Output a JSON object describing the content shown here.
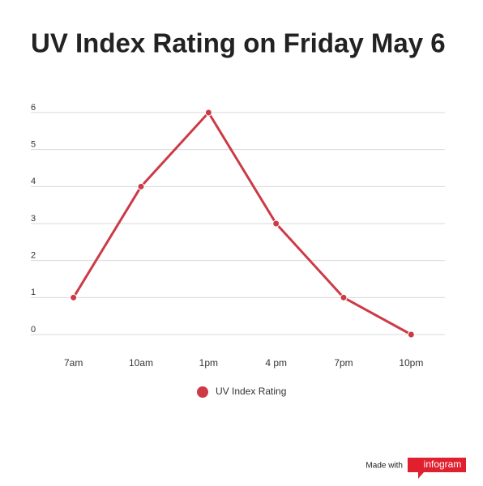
{
  "chart_data": {
    "type": "line",
    "title": "UV Index Rating on Friday May 6",
    "categories": [
      "7am",
      "10am",
      "1pm",
      "4 pm",
      "7pm",
      "10pm"
    ],
    "series": [
      {
        "name": "UV Index Rating",
        "color": "#cc3a45",
        "values": [
          1,
          4,
          6,
          3,
          1,
          0
        ]
      }
    ],
    "ylim": [
      0,
      6
    ],
    "yticks": [
      0,
      1,
      2,
      3,
      4,
      5,
      6
    ],
    "grid": true,
    "legend": "bottom"
  },
  "branding": {
    "prefix": "Made with",
    "logo": "infogram"
  }
}
